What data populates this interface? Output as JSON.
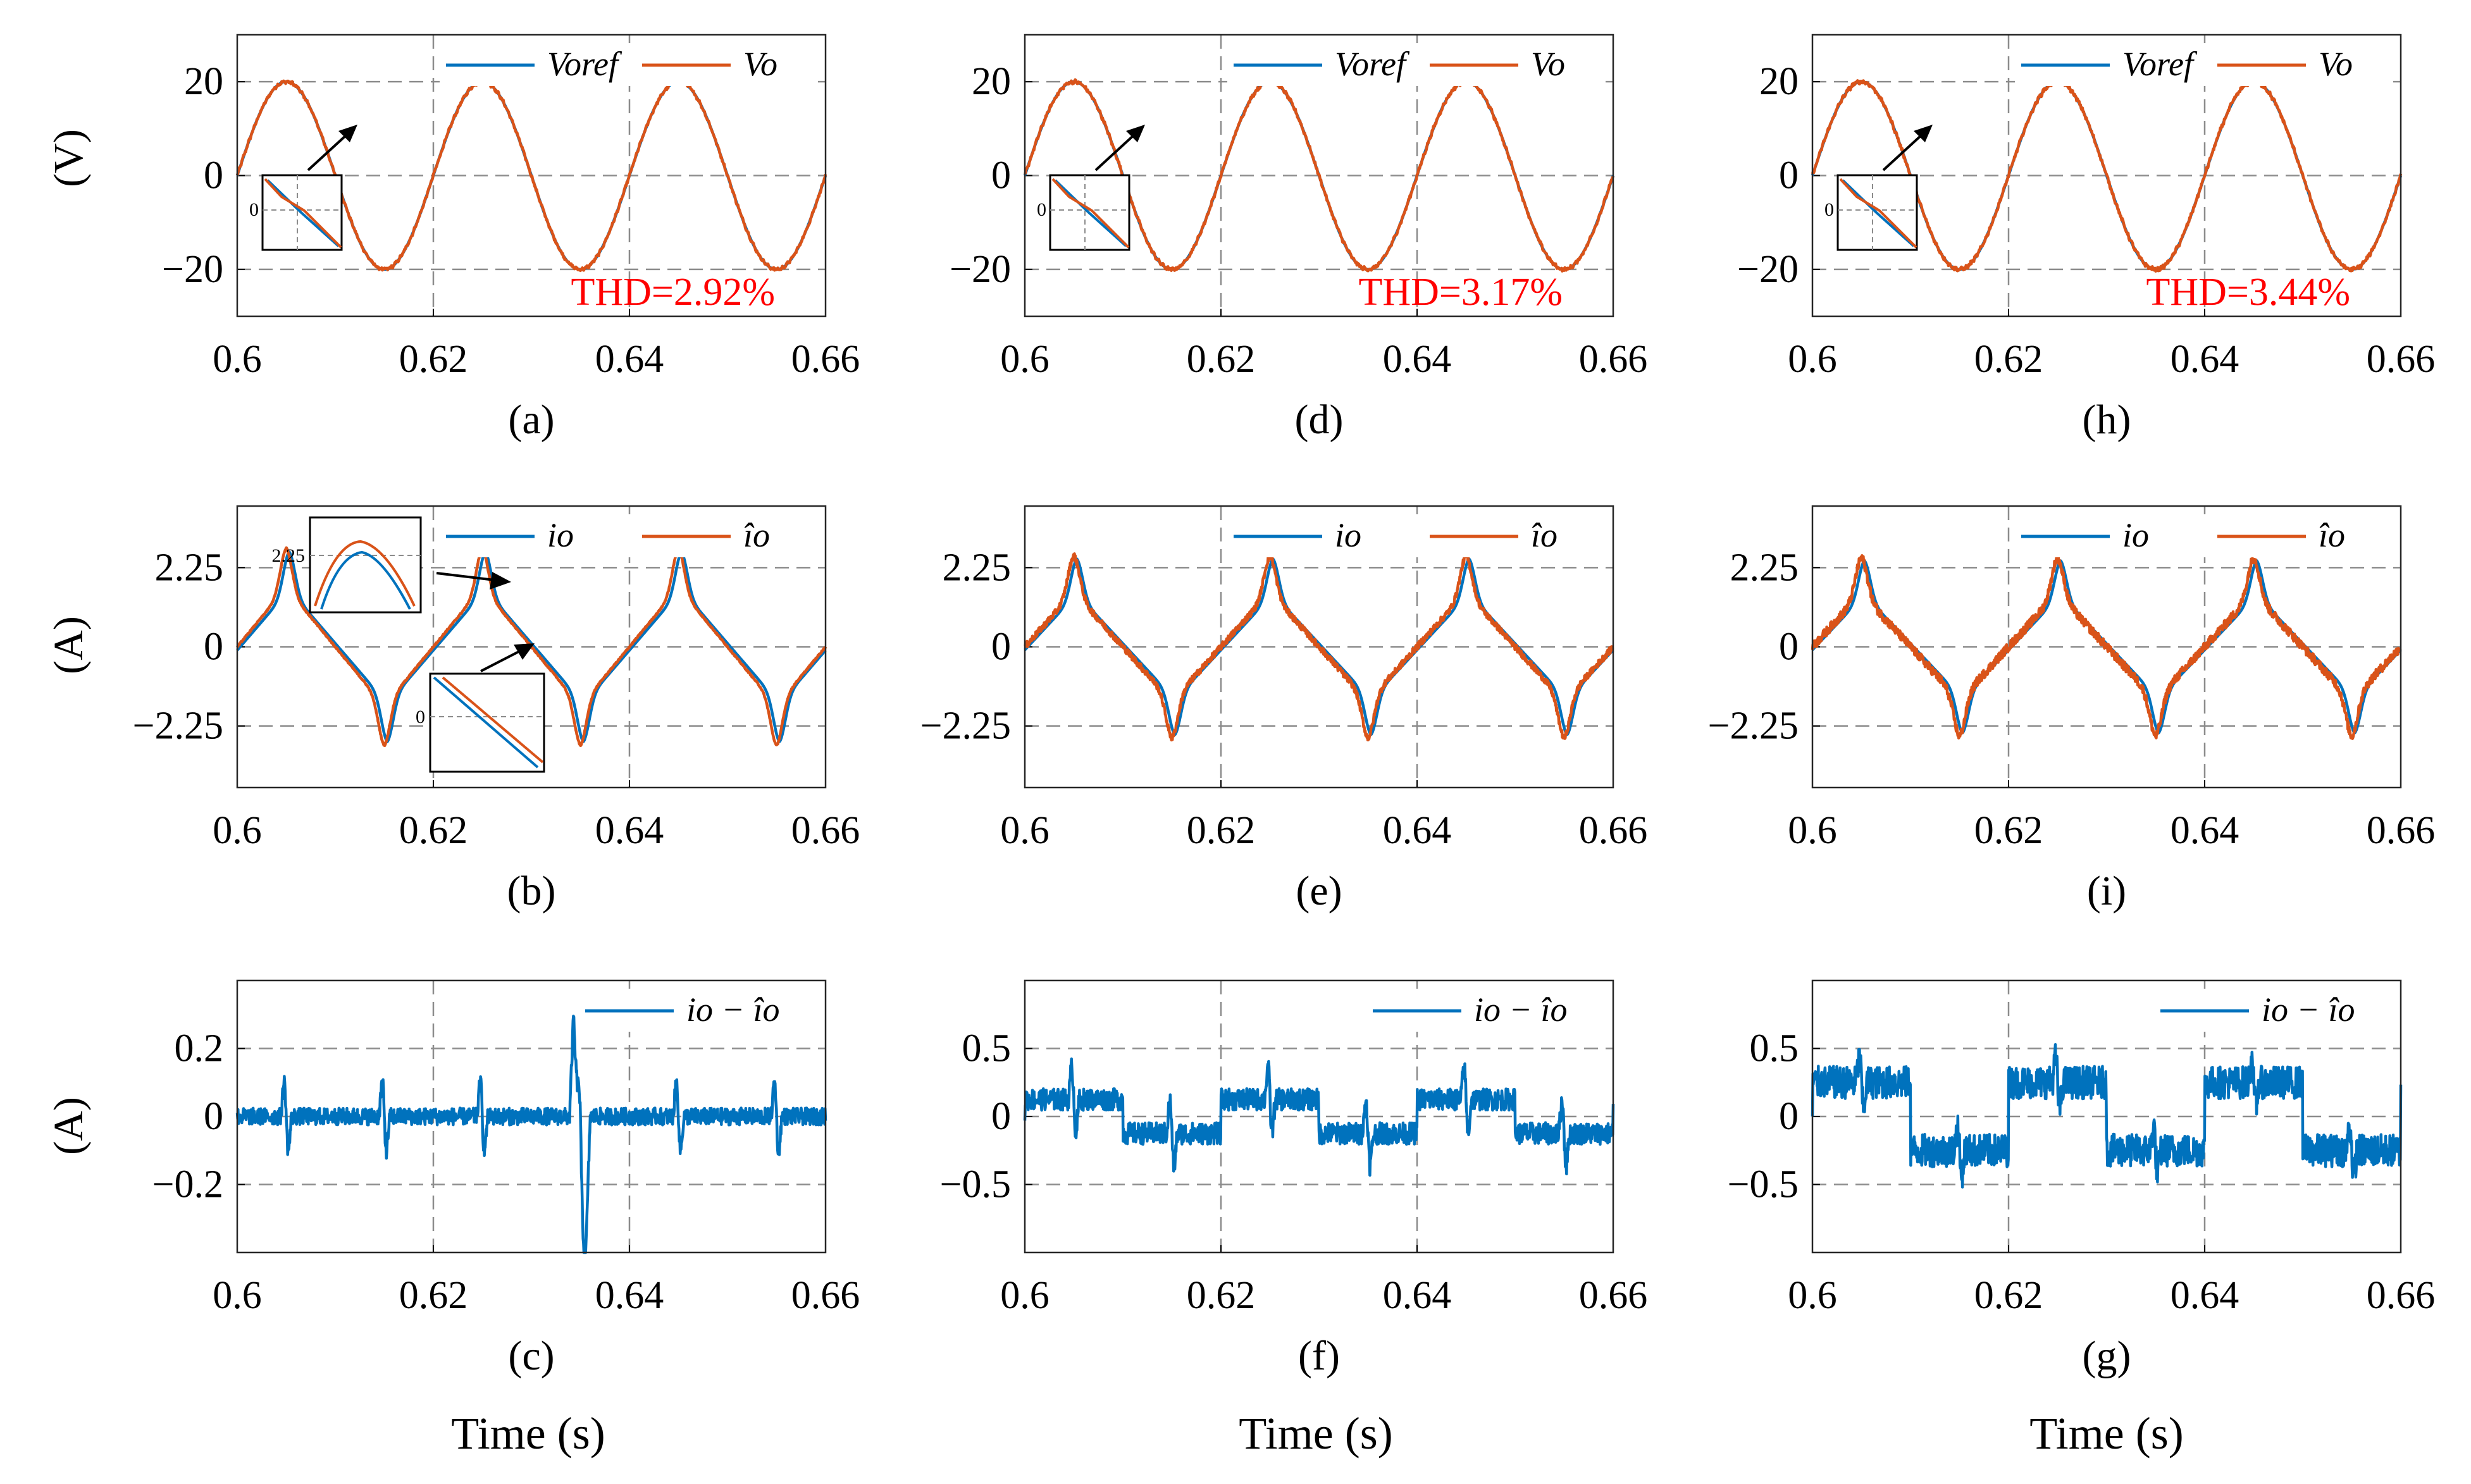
{
  "colors": {
    "blue": "#0072BD",
    "orange": "#D95319",
    "thd": "#FF0000",
    "grid": "#8c8c8c"
  },
  "row_ylabels": [
    "(V)",
    "(A)",
    "(A)"
  ],
  "xlabel": "Time (s)",
  "chart_data": [
    {
      "id": "a",
      "type": "line",
      "caption": "(a)",
      "signal": "voltage",
      "xlim": [
        0.6,
        0.66
      ],
      "xticks": [
        "0.6",
        "0.62",
        "0.64",
        "0.66"
      ],
      "ylim": [
        -30,
        30
      ],
      "yticks": [
        {
          "v": 20,
          "t": "20"
        },
        {
          "v": 0,
          "t": "0"
        },
        {
          "v": -20,
          "t": "−20"
        }
      ],
      "amplitude": 20,
      "frequency_hz": 50,
      "noise": 0.3,
      "series": [
        {
          "name": "Voref",
          "color": "#0072BD"
        },
        {
          "name": "Vo",
          "color": "#D95319"
        }
      ],
      "annotation": "THD=2.92%",
      "inset_label": "0",
      "grid": true,
      "legend": "top-right"
    },
    {
      "id": "d",
      "type": "line",
      "caption": "(d)",
      "signal": "voltage",
      "xlim": [
        0.6,
        0.66
      ],
      "xticks": [
        "0.6",
        "0.62",
        "0.64",
        "0.66"
      ],
      "ylim": [
        -30,
        30
      ],
      "yticks": [
        {
          "v": 20,
          "t": "20"
        },
        {
          "v": 0,
          "t": "0"
        },
        {
          "v": -20,
          "t": "−20"
        }
      ],
      "amplitude": 20,
      "frequency_hz": 50,
      "noise": 0.35,
      "series": [
        {
          "name": "Voref",
          "color": "#0072BD"
        },
        {
          "name": "Vo",
          "color": "#D95319"
        }
      ],
      "annotation": "THD=3.17%",
      "inset_label": "0",
      "grid": true,
      "legend": "top-right"
    },
    {
      "id": "h",
      "type": "line",
      "caption": "(h)",
      "signal": "voltage",
      "xlim": [
        0.6,
        0.66
      ],
      "xticks": [
        "0.6",
        "0.62",
        "0.64",
        "0.66"
      ],
      "ylim": [
        -30,
        30
      ],
      "yticks": [
        {
          "v": 20,
          "t": "20"
        },
        {
          "v": 0,
          "t": "0"
        },
        {
          "v": -20,
          "t": "−20"
        }
      ],
      "amplitude": 20,
      "frequency_hz": 50,
      "noise": 0.4,
      "series": [
        {
          "name": "Voref",
          "color": "#0072BD"
        },
        {
          "name": "Vo",
          "color": "#D95319"
        }
      ],
      "annotation": "THD=3.44%",
      "inset_label": "0",
      "grid": true,
      "legend": "top-right"
    },
    {
      "id": "b",
      "type": "line",
      "caption": "(b)",
      "signal": "current",
      "xlim": [
        0.6,
        0.66
      ],
      "xticks": [
        "0.6",
        "0.62",
        "0.64",
        "0.66"
      ],
      "ylim": [
        -4,
        4
      ],
      "yticks": [
        {
          "v": 2.25,
          "t": "2.25"
        },
        {
          "v": 0,
          "t": "0"
        },
        {
          "v": -2.25,
          "t": "−2.25"
        }
      ],
      "peak": 2.7,
      "frequency_hz": 50,
      "noise": 0.02,
      "series": [
        {
          "name": "io",
          "color": "#0072BD"
        },
        {
          "name": "îo",
          "color": "#D95319"
        }
      ],
      "inset_label": "0",
      "inset_peak_label": "2.25",
      "grid": true,
      "legend": "top-right"
    },
    {
      "id": "e",
      "type": "line",
      "caption": "(e)",
      "signal": "current",
      "xlim": [
        0.6,
        0.66
      ],
      "xticks": [
        "0.6",
        "0.62",
        "0.64",
        "0.66"
      ],
      "ylim": [
        -4,
        4
      ],
      "yticks": [
        {
          "v": 2.25,
          "t": "2.25"
        },
        {
          "v": 0,
          "t": "0"
        },
        {
          "v": -2.25,
          "t": "−2.25"
        }
      ],
      "peak": 2.5,
      "frequency_hz": 50,
      "noise": 0.09,
      "series": [
        {
          "name": "io",
          "color": "#0072BD"
        },
        {
          "name": "îo",
          "color": "#D95319"
        }
      ],
      "grid": true,
      "legend": "top-right"
    },
    {
      "id": "i",
      "type": "line",
      "caption": "(i)",
      "signal": "current",
      "xlim": [
        0.6,
        0.66
      ],
      "xticks": [
        "0.6",
        "0.62",
        "0.64",
        "0.66"
      ],
      "ylim": [
        -4,
        4
      ],
      "yticks": [
        {
          "v": 2.25,
          "t": "2.25"
        },
        {
          "v": 0,
          "t": "0"
        },
        {
          "v": -2.25,
          "t": "−2.25"
        }
      ],
      "peak": 2.45,
      "frequency_hz": 50,
      "noise": 0.13,
      "series": [
        {
          "name": "io",
          "color": "#0072BD"
        },
        {
          "name": "îo",
          "color": "#D95319"
        }
      ],
      "grid": true,
      "legend": "top-right"
    },
    {
      "id": "c",
      "type": "line",
      "caption": "(c)",
      "signal": "error",
      "xlim": [
        0.6,
        0.66
      ],
      "xticks": [
        "0.6",
        "0.62",
        "0.64",
        "0.66"
      ],
      "ylim": [
        -0.4,
        0.4
      ],
      "yticks": [
        {
          "v": 0.2,
          "t": "0.2"
        },
        {
          "v": 0,
          "t": "0"
        },
        {
          "v": -0.2,
          "t": "−0.2"
        }
      ],
      "noise": 0.025,
      "spike_amp": 0.17,
      "series": [
        {
          "name": "io − îo",
          "color": "#0072BD"
        }
      ],
      "grid": true,
      "legend": "top-right"
    },
    {
      "id": "f",
      "type": "line",
      "caption": "(f)",
      "signal": "error",
      "xlim": [
        0.6,
        0.66
      ],
      "xticks": [
        "0.6",
        "0.62",
        "0.64",
        "0.66"
      ],
      "ylim": [
        -1.0,
        1.0
      ],
      "yticks": [
        {
          "v": 0.5,
          "t": "0.5"
        },
        {
          "v": 0,
          "t": "0"
        },
        {
          "v": -0.5,
          "t": "−0.5"
        }
      ],
      "noise": 0.08,
      "spike_amp": 0.4,
      "series": [
        {
          "name": "io − îo",
          "color": "#0072BD"
        }
      ],
      "grid": true,
      "legend": "top-right"
    },
    {
      "id": "g",
      "type": "line",
      "caption": "(g)",
      "signal": "error",
      "xlim": [
        0.6,
        0.66
      ],
      "xticks": [
        "0.6",
        "0.62",
        "0.64",
        "0.66"
      ],
      "ylim": [
        -1.0,
        1.0
      ],
      "yticks": [
        {
          "v": 0.5,
          "t": "0.5"
        },
        {
          "v": 0,
          "t": "0"
        },
        {
          "v": -0.5,
          "t": "−0.5"
        }
      ],
      "noise": 0.12,
      "spike_amp": 0.3,
      "series": [
        {
          "name": "io − îo",
          "color": "#0072BD"
        }
      ],
      "grid": true,
      "legend": "top-right"
    }
  ]
}
